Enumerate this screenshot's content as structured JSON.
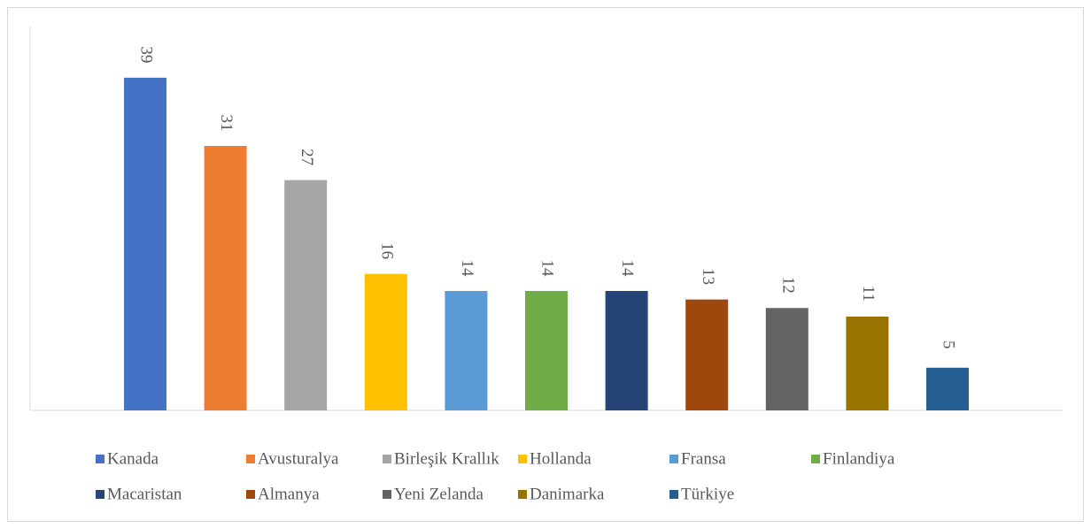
{
  "chart_data": {
    "type": "bar",
    "categories": [
      null
    ],
    "series": [
      {
        "name": "Kanada",
        "color": "#4472C4",
        "values": [
          39
        ]
      },
      {
        "name": "Avusturalya",
        "color": "#ED7D31",
        "values": [
          31
        ]
      },
      {
        "name": "Birleşik Krallık",
        "color": "#A5A5A5",
        "values": [
          27
        ]
      },
      {
        "name": "Hollanda",
        "color": "#FFC000",
        "values": [
          16
        ]
      },
      {
        "name": "Fransa",
        "color": "#5B9BD5",
        "values": [
          14
        ]
      },
      {
        "name": "Finlandiya",
        "color": "#70AD47",
        "values": [
          14
        ]
      },
      {
        "name": "Macaristan",
        "color": "#264478",
        "values": [
          14
        ]
      },
      {
        "name": "Almanya",
        "color": "#9E480E",
        "values": [
          13
        ]
      },
      {
        "name": "Yeni Zelanda",
        "color": "#636363",
        "values": [
          12
        ]
      },
      {
        "name": "Danimarka",
        "color": "#997300",
        "values": [
          11
        ]
      },
      {
        "name": "Türkiye",
        "color": "#255E91",
        "values": [
          5
        ]
      }
    ],
    "ylim": [
      0,
      45
    ],
    "legend": "bottom"
  }
}
